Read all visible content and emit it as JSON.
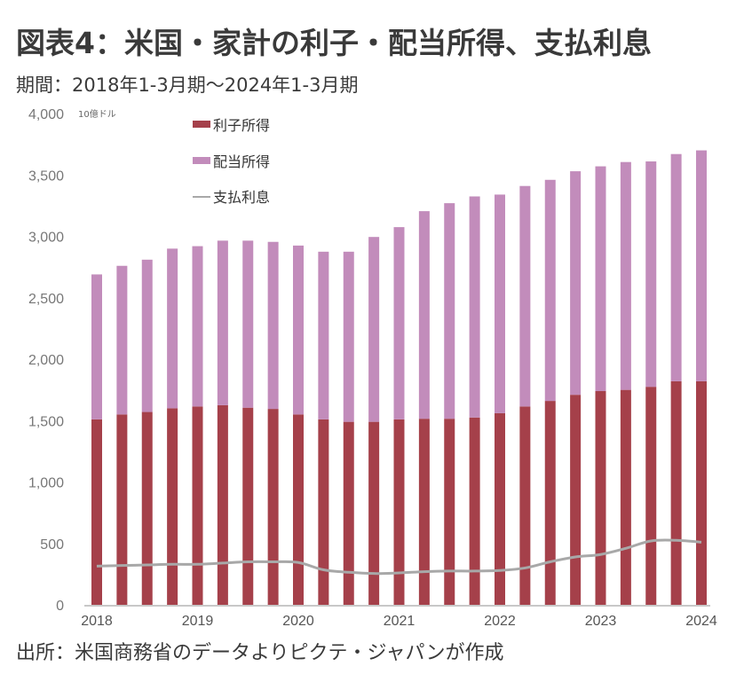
{
  "title": "図表4：米国・家計の利子・配当所得、支払利息",
  "subtitle": "期間：2018年1-3月期～2024年1-3月期",
  "source": "出所：米国商務省のデータよりピクテ・ジャパンが作成",
  "chart_data": {
    "type": "bar",
    "stacked": true,
    "title": "図表4：米国・家計の利子・配当所得、支払利息",
    "unit_label": "10億ドル",
    "xlabel": "",
    "ylabel": "",
    "ylim": [
      0,
      4000
    ],
    "y_ticks": [
      0,
      500,
      1000,
      1500,
      2000,
      2500,
      3000,
      3500,
      4000
    ],
    "y_tick_labels": [
      "0",
      "500",
      "1,000",
      "1,500",
      "2,000",
      "2,500",
      "3,000",
      "3,500",
      "4,000"
    ],
    "x_tick_labels": [
      "2018",
      "2019",
      "2020",
      "2021",
      "2022",
      "2023",
      "2024"
    ],
    "x_tick_index": [
      0,
      4,
      8,
      12,
      16,
      20,
      24
    ],
    "grid": false,
    "legend_position": "top-left",
    "categories": [
      "2018Q1",
      "2018Q2",
      "2018Q3",
      "2018Q4",
      "2019Q1",
      "2019Q2",
      "2019Q3",
      "2019Q4",
      "2020Q1",
      "2020Q2",
      "2020Q3",
      "2020Q4",
      "2021Q1",
      "2021Q2",
      "2021Q3",
      "2021Q4",
      "2022Q1",
      "2022Q2",
      "2022Q3",
      "2022Q4",
      "2023Q1",
      "2023Q2",
      "2023Q3",
      "2023Q4",
      "2024Q1"
    ],
    "series": [
      {
        "name": "利子所得",
        "type": "bar",
        "color": "#a5404a",
        "values": [
          1510,
          1550,
          1570,
          1600,
          1615,
          1625,
          1605,
          1595,
          1550,
          1510,
          1490,
          1490,
          1510,
          1515,
          1515,
          1525,
          1560,
          1615,
          1660,
          1710,
          1740,
          1750,
          1775,
          1820,
          1820
        ]
      },
      {
        "name": "配当所得",
        "type": "bar",
        "color": "#c28cbb",
        "values": [
          1180,
          1210,
          1240,
          1300,
          1305,
          1340,
          1360,
          1360,
          1375,
          1365,
          1385,
          1505,
          1565,
          1690,
          1755,
          1800,
          1780,
          1795,
          1800,
          1820,
          1830,
          1855,
          1835,
          1850,
          1880
        ]
      },
      {
        "name": "支払利息",
        "type": "line",
        "color": "#a8a8a8",
        "values": [
          315,
          320,
          325,
          330,
          330,
          340,
          350,
          350,
          345,
          285,
          265,
          255,
          260,
          270,
          275,
          275,
          280,
          300,
          350,
          390,
          410,
          460,
          520,
          525,
          510
        ]
      }
    ]
  }
}
